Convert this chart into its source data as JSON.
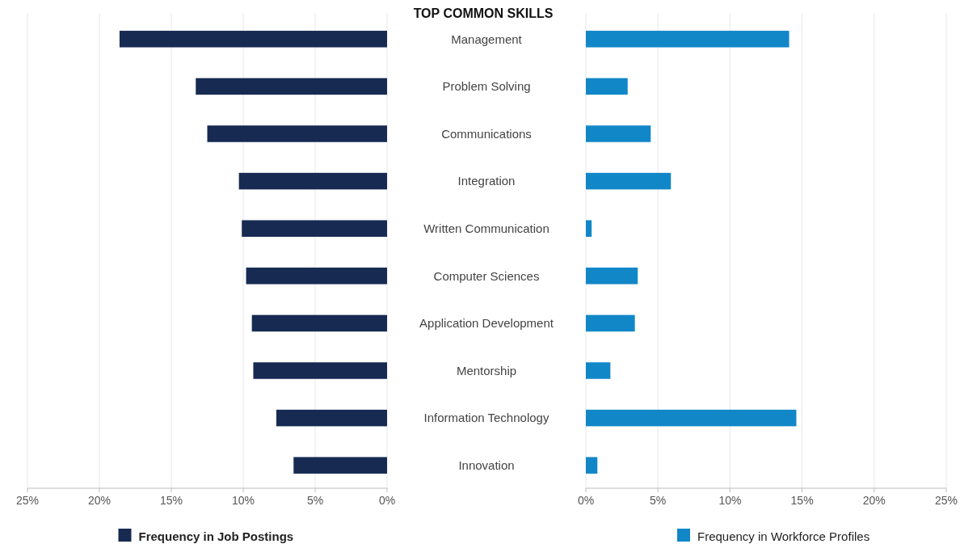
{
  "chart_data": [
    {
      "type": "bar",
      "orientation": "horizontal",
      "title": "TOP COMMON SKILLS",
      "categories": [
        "Management",
        "Problem Solving",
        "Communications",
        "Integration",
        "Written Communication",
        "Computer Sciences",
        "Application Development",
        "Mentorship",
        "Information Technology",
        "Innovation"
      ],
      "series": [
        {
          "name": "Frequency in Job Postings",
          "color": "#172a52",
          "values": [
            18.6,
            13.3,
            12.5,
            10.3,
            10.1,
            9.8,
            9.4,
            9.3,
            7.7,
            6.5
          ]
        }
      ],
      "xlim": [
        25,
        0
      ],
      "xticks": [
        {
          "value": 25,
          "label": "25%"
        },
        {
          "value": 20,
          "label": "20%"
        },
        {
          "value": 15,
          "label": "15%"
        },
        {
          "value": 10,
          "label": "10%"
        },
        {
          "value": 5,
          "label": "5%"
        },
        {
          "value": 0,
          "label": "0%"
        }
      ],
      "grid": "x",
      "legend": "bottom"
    },
    {
      "type": "bar",
      "orientation": "horizontal",
      "categories": [
        null,
        null,
        null,
        null,
        null,
        null,
        null,
        null,
        null,
        null
      ],
      "series": [
        {
          "name": "Frequency in Workforce Profiles",
          "color": "#1287c8",
          "values": [
            14.1,
            2.9,
            4.5,
            5.9,
            0.4,
            3.6,
            3.4,
            1.7,
            14.6,
            0.8
          ]
        }
      ],
      "xlim": [
        0,
        25
      ],
      "xticks": [
        {
          "value": 0,
          "label": "0%"
        },
        {
          "value": 5,
          "label": "5%"
        },
        {
          "value": 10,
          "label": "10%"
        },
        {
          "value": 15,
          "label": "15%"
        },
        {
          "value": 20,
          "label": "20%"
        },
        {
          "value": 25,
          "label": "25%"
        }
      ],
      "grid": "x",
      "legend": "bottom",
      "tick_labels": "x"
    }
  ]
}
